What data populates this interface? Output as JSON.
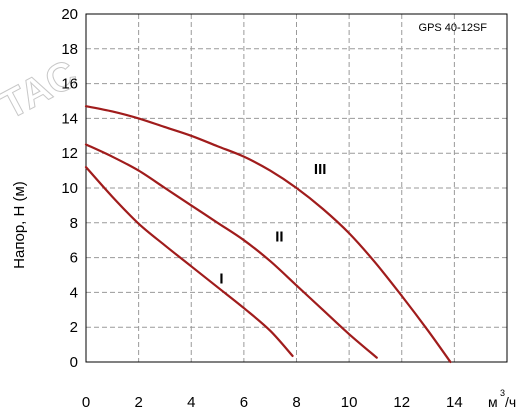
{
  "chart_data": {
    "type": "line",
    "title": "GPS 40-12SF",
    "ylabel": "Напор, H (м)",
    "xlabel_unit": "м",
    "xlabel_unit_sup": "3",
    "xlabel_unit_tail": "/ч",
    "watermark": "TAC",
    "xlim": [
      0,
      16
    ],
    "ylim": [
      0,
      20
    ],
    "xticks": [
      0,
      2,
      4,
      6,
      8,
      10,
      12,
      14
    ],
    "yticks": [
      0,
      2,
      4,
      6,
      8,
      10,
      12,
      14,
      16,
      18,
      20
    ],
    "xtick_labels": [
      "0",
      "2",
      "4",
      "6",
      "8",
      "10",
      "12",
      "14"
    ],
    "ytick_labels": [
      "0",
      "2",
      "4",
      "6",
      "8",
      "10",
      "12",
      "14",
      "16",
      "18",
      "20"
    ],
    "grid": true,
    "curve_color": "#a01c1c",
    "series": [
      {
        "name": "I",
        "label_at": [
          5.15,
          4.8
        ],
        "x": [
          0,
          1,
          2,
          3,
          4,
          5,
          6,
          7,
          7.85
        ],
        "y": [
          11.2,
          9.5,
          7.95,
          6.7,
          5.5,
          4.3,
          3.1,
          1.8,
          0.35
        ]
      },
      {
        "name": "II",
        "label_at": [
          7.35,
          7.2
        ],
        "x": [
          0,
          1,
          2,
          3,
          4,
          5,
          6,
          7,
          8,
          9,
          10,
          11.05
        ],
        "y": [
          12.5,
          11.8,
          11.0,
          10.0,
          9.0,
          8.0,
          7.0,
          5.8,
          4.4,
          3.0,
          1.6,
          0.25
        ]
      },
      {
        "name": "III",
        "label_at": [
          8.9,
          11.1
        ],
        "x": [
          0,
          1,
          2,
          3,
          4,
          5,
          6,
          7,
          8,
          9,
          10,
          11,
          12,
          13,
          13.85
        ],
        "y": [
          14.7,
          14.4,
          14.0,
          13.5,
          13.0,
          12.4,
          11.8,
          11.0,
          10.0,
          8.8,
          7.4,
          5.7,
          3.8,
          1.8,
          0.0
        ]
      }
    ]
  }
}
